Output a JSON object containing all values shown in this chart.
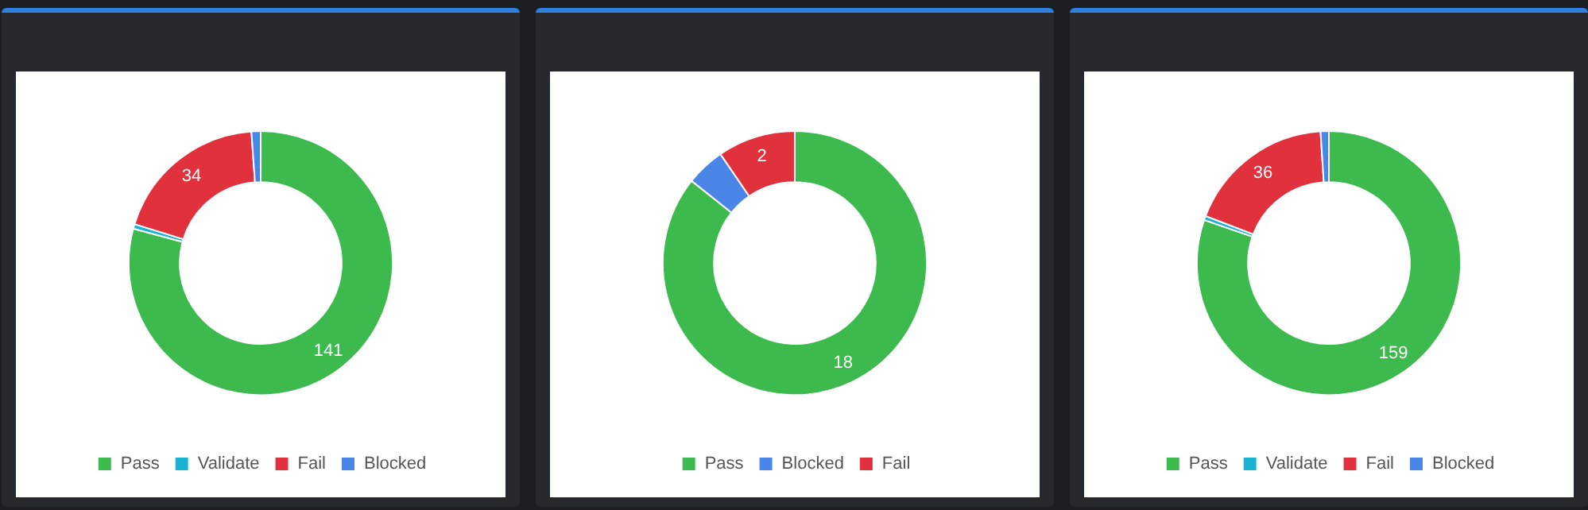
{
  "chart_data": [
    {
      "type": "donut",
      "categories": [
        "Pass",
        "Validate",
        "Fail",
        "Blocked"
      ],
      "values": [
        141,
        1,
        34,
        2
      ],
      "value_labels": [
        "141",
        null,
        "34",
        null
      ],
      "colors": [
        "#3dba4e",
        "#17b3d3",
        "#e0313d",
        "#4a86e8"
      ],
      "legend": "bottom"
    },
    {
      "type": "donut",
      "categories": [
        "Pass",
        "Blocked",
        "Fail"
      ],
      "values": [
        18,
        1,
        2
      ],
      "value_labels": [
        "18",
        null,
        "2"
      ],
      "colors": [
        "#3dba4e",
        "#4a86e8",
        "#e0313d"
      ],
      "legend": "bottom"
    },
    {
      "type": "donut",
      "categories": [
        "Pass",
        "Validate",
        "Fail",
        "Blocked"
      ],
      "values": [
        159,
        1,
        36,
        2
      ],
      "value_labels": [
        "159",
        null,
        "36",
        null
      ],
      "colors": [
        "#3dba4e",
        "#17b3d3",
        "#e0313d",
        "#4a86e8"
      ],
      "legend": "bottom"
    }
  ]
}
